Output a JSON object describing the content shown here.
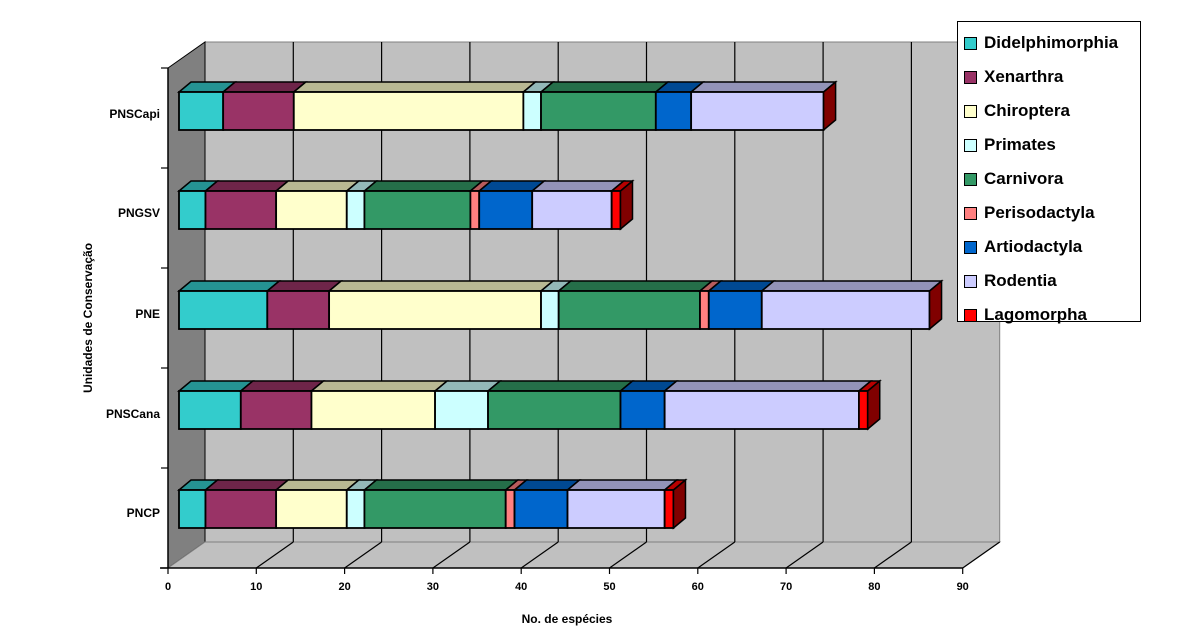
{
  "chart_data": {
    "type": "bar",
    "orientation": "horizontal",
    "stacked": true,
    "three_d": true,
    "title": "",
    "xlabel": "No. de espécies",
    "ylabel": "Unidades de Conservação",
    "xlim": [
      0,
      90
    ],
    "xticks": [
      0,
      10,
      20,
      30,
      40,
      50,
      60,
      70,
      80,
      90
    ],
    "grid": true,
    "legend_position": "right-top",
    "categories": [
      "PNSCapi",
      "PNGSV",
      "PNE",
      "PNSCana",
      "PNCP"
    ],
    "series": [
      {
        "name": "Didelphimorphia",
        "color": "#33CCCC",
        "values": [
          5,
          3,
          10,
          7,
          3
        ]
      },
      {
        "name": "Xenarthra",
        "color": "#993366",
        "values": [
          8,
          8,
          7,
          8,
          8
        ]
      },
      {
        "name": "Chiroptera",
        "color": "#FFFFCC",
        "values": [
          26,
          8,
          24,
          14,
          8
        ]
      },
      {
        "name": "Primates",
        "color": "#CCFFFF",
        "values": [
          2,
          2,
          2,
          6,
          2
        ]
      },
      {
        "name": "Carnivora",
        "color": "#339966",
        "values": [
          13,
          12,
          16,
          15,
          16
        ]
      },
      {
        "name": "Perisodactyla",
        "color": "#FF8080",
        "values": [
          0,
          1,
          1,
          0,
          1
        ]
      },
      {
        "name": "Artiodactyla",
        "color": "#0066CC",
        "values": [
          4,
          6,
          6,
          5,
          6
        ]
      },
      {
        "name": "Rodentia",
        "color": "#CCCCFF",
        "values": [
          15,
          9,
          19,
          22,
          11
        ]
      },
      {
        "name": "Lagomorpha",
        "color": "#FF0000",
        "values": [
          0,
          1,
          0,
          1,
          1
        ]
      }
    ],
    "totals": [
      73,
      50,
      85,
      78,
      56
    ]
  },
  "style": {
    "back_wall": "#C0C0C0",
    "side_wall": "#808080",
    "floor": "#C0C0C0",
    "gridline": "#000000"
  }
}
